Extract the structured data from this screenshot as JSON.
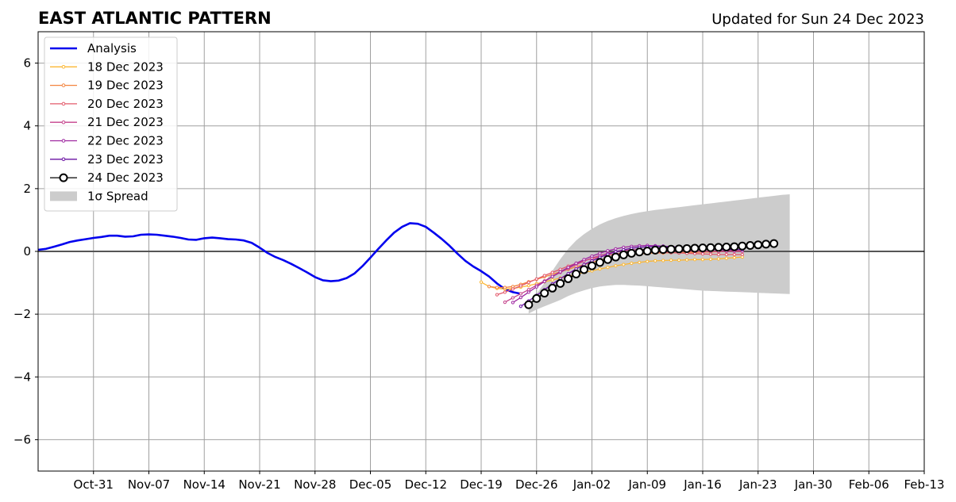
{
  "chart_data": {
    "type": "line",
    "title": "EAST ATLANTIC PATTERN",
    "subtitle": "Updated for Sun 24 Dec 2023",
    "xlabel": "",
    "ylabel": "",
    "x_range": [
      "2023-10-24",
      "2024-02-13"
    ],
    "ylim": [
      -7,
      7
    ],
    "x_ticks": [
      "Oct-31",
      "Nov-07",
      "Nov-14",
      "Nov-21",
      "Nov-28",
      "Dec-05",
      "Dec-12",
      "Dec-19",
      "Dec-26",
      "Jan-02",
      "Jan-09",
      "Jan-16",
      "Jan-23",
      "Jan-30",
      "Feb-06",
      "Feb-13"
    ],
    "x_tick_dates": [
      "2023-10-31",
      "2023-11-07",
      "2023-11-14",
      "2023-11-21",
      "2023-11-28",
      "2023-12-05",
      "2023-12-12",
      "2023-12-19",
      "2023-12-26",
      "2024-01-02",
      "2024-01-09",
      "2024-01-16",
      "2024-01-23",
      "2024-01-30",
      "2024-02-06",
      "2024-02-13"
    ],
    "y_ticks": [
      -6,
      -4,
      -2,
      0,
      2,
      4,
      6
    ],
    "y_tick_labels": [
      "−6",
      "−4",
      "−2",
      "0",
      "2",
      "4",
      "6"
    ],
    "grid": true,
    "legend_position": "top-left",
    "legend": [
      "Analysis",
      "18 Dec 2023",
      "19 Dec 2023",
      "20 Dec 2023",
      "21 Dec 2023",
      "22 Dec 2023",
      "23 Dec 2023",
      "24 Dec 2023",
      "1σ Spread"
    ],
    "analysis": {
      "name": "Analysis",
      "color": "#0000ee",
      "points": [
        [
          "2023-10-24",
          0.05
        ],
        [
          "2023-10-25",
          0.08
        ],
        [
          "2023-10-26",
          0.15
        ],
        [
          "2023-10-27",
          0.22
        ],
        [
          "2023-10-28",
          0.3
        ],
        [
          "2023-10-29",
          0.35
        ],
        [
          "2023-10-30",
          0.39
        ],
        [
          "2023-10-31",
          0.43
        ],
        [
          "2023-11-01",
          0.46
        ],
        [
          "2023-11-02",
          0.5
        ],
        [
          "2023-11-03",
          0.5
        ],
        [
          "2023-11-04",
          0.47
        ],
        [
          "2023-11-05",
          0.48
        ],
        [
          "2023-11-06",
          0.53
        ],
        [
          "2023-11-07",
          0.54
        ],
        [
          "2023-11-08",
          0.53
        ],
        [
          "2023-11-09",
          0.5
        ],
        [
          "2023-11-10",
          0.47
        ],
        [
          "2023-11-11",
          0.43
        ],
        [
          "2023-11-12",
          0.38
        ],
        [
          "2023-11-13",
          0.37
        ],
        [
          "2023-11-14",
          0.42
        ],
        [
          "2023-11-15",
          0.44
        ],
        [
          "2023-11-16",
          0.42
        ],
        [
          "2023-11-17",
          0.39
        ],
        [
          "2023-11-18",
          0.38
        ],
        [
          "2023-11-19",
          0.35
        ],
        [
          "2023-11-20",
          0.27
        ],
        [
          "2023-11-21",
          0.12
        ],
        [
          "2023-11-22",
          -0.05
        ],
        [
          "2023-11-23",
          -0.18
        ],
        [
          "2023-11-24",
          -0.28
        ],
        [
          "2023-11-25",
          -0.4
        ],
        [
          "2023-11-26",
          -0.53
        ],
        [
          "2023-11-27",
          -0.67
        ],
        [
          "2023-11-28",
          -0.82
        ],
        [
          "2023-11-29",
          -0.92
        ],
        [
          "2023-11-30",
          -0.95
        ],
        [
          "2023-12-01",
          -0.93
        ],
        [
          "2023-12-02",
          -0.85
        ],
        [
          "2023-12-03",
          -0.7
        ],
        [
          "2023-12-04",
          -0.47
        ],
        [
          "2023-12-05",
          -0.2
        ],
        [
          "2023-12-06",
          0.08
        ],
        [
          "2023-12-07",
          0.35
        ],
        [
          "2023-12-08",
          0.6
        ],
        [
          "2023-12-09",
          0.78
        ],
        [
          "2023-12-10",
          0.9
        ],
        [
          "2023-12-11",
          0.88
        ],
        [
          "2023-12-12",
          0.78
        ],
        [
          "2023-12-13",
          0.6
        ],
        [
          "2023-12-14",
          0.4
        ],
        [
          "2023-12-15",
          0.18
        ],
        [
          "2023-12-16",
          -0.07
        ],
        [
          "2023-12-17",
          -0.3
        ],
        [
          "2023-12-18",
          -0.48
        ],
        [
          "2023-12-19",
          -0.63
        ],
        [
          "2023-12-20",
          -0.8
        ],
        [
          "2023-12-21",
          -1.02
        ],
        [
          "2023-12-22",
          -1.2
        ],
        [
          "2023-12-23",
          -1.3
        ],
        [
          "2023-12-24",
          -1.35
        ]
      ]
    },
    "forecasts": [
      {
        "name": "18 Dec 2023",
        "color": "#fbb733",
        "start": "2023-12-19",
        "values": [
          -0.98,
          -1.12,
          -1.18,
          -1.2,
          -1.18,
          -1.14,
          -1.09,
          -1.03,
          -0.97,
          -0.91,
          -0.85,
          -0.79,
          -0.73,
          -0.67,
          -0.62,
          -0.56,
          -0.51,
          -0.46,
          -0.42,
          -0.38,
          -0.35,
          -0.32,
          -0.3,
          -0.29,
          -0.28,
          -0.28,
          -0.27,
          -0.26,
          -0.26,
          -0.25,
          -0.24,
          -0.22,
          -0.2,
          -0.18
        ]
      },
      {
        "name": "19 Dec 2023",
        "color": "#f3843e",
        "start": "2023-12-20",
        "values": [
          -1.12,
          -1.15,
          -1.15,
          -1.12,
          -1.05,
          -0.97,
          -0.89,
          -0.81,
          -0.73,
          -0.65,
          -0.57,
          -0.49,
          -0.42,
          -0.35,
          -0.28,
          -0.22,
          -0.17,
          -0.13,
          -0.1,
          -0.08,
          -0.06,
          -0.05,
          -0.05,
          -0.04,
          -0.04,
          -0.03,
          -0.03,
          -0.02,
          -0.02,
          -0.01,
          0.0,
          0.01,
          0.02
        ]
      },
      {
        "name": "20 Dec 2023",
        "color": "#e35a6b",
        "start": "2023-12-21",
        "values": [
          -1.38,
          -1.3,
          -1.2,
          -1.1,
          -0.99,
          -0.88,
          -0.77,
          -0.67,
          -0.57,
          -0.47,
          -0.38,
          -0.3,
          -0.23,
          -0.17,
          -0.12,
          -0.08,
          -0.05,
          -0.03,
          -0.02,
          -0.02,
          -0.02,
          -0.03,
          -0.04,
          -0.05,
          -0.06,
          -0.07,
          -0.08,
          -0.09,
          -0.1,
          -0.1,
          -0.1,
          -0.1
        ]
      },
      {
        "name": "21 Dec 2023",
        "color": "#c4418b",
        "start": "2023-12-22",
        "values": [
          -1.62,
          -1.48,
          -1.35,
          -1.22,
          -1.08,
          -0.94,
          -0.8,
          -0.67,
          -0.54,
          -0.42,
          -0.31,
          -0.21,
          -0.13,
          -0.06,
          -0.01,
          0.03,
          0.05,
          0.06,
          0.06,
          0.05,
          0.04,
          0.03,
          0.02,
          0.01,
          0.0,
          0.0,
          0.0,
          0.0,
          0.0,
          0.0,
          0.0
        ]
      },
      {
        "name": "22 Dec 2023",
        "color": "#9e27a0",
        "start": "2023-12-23",
        "values": [
          -1.63,
          -1.47,
          -1.3,
          -1.13,
          -0.96,
          -0.8,
          -0.65,
          -0.51,
          -0.38,
          -0.26,
          -0.15,
          -0.06,
          0.02,
          0.08,
          0.13,
          0.16,
          0.18,
          0.19,
          0.18,
          0.17,
          0.15,
          0.13,
          0.11,
          0.09,
          0.07,
          0.06,
          0.05,
          0.04,
          0.04,
          0.05
        ]
      },
      {
        "name": "23 Dec 2023",
        "color": "#6a10a3",
        "start": "2023-12-24",
        "values": [
          -1.75,
          -1.58,
          -1.4,
          -1.22,
          -1.04,
          -0.87,
          -0.71,
          -0.56,
          -0.42,
          -0.3,
          -0.19,
          -0.09,
          -0.01,
          0.05,
          0.1,
          0.13,
          0.15,
          0.16,
          0.16,
          0.15,
          0.14,
          0.13,
          0.11,
          0.1,
          0.09,
          0.08,
          0.07,
          0.06,
          0.05
        ]
      },
      {
        "name": "24 Dec 2023",
        "color": "#000000",
        "start": "2023-12-25",
        "values": [
          -1.7,
          -1.5,
          -1.33,
          -1.17,
          -1.02,
          -0.87,
          -0.72,
          -0.58,
          -0.46,
          -0.35,
          -0.26,
          -0.18,
          -0.11,
          -0.06,
          -0.02,
          0.01,
          0.04,
          0.06,
          0.07,
          0.08,
          0.09,
          0.1,
          0.11,
          0.12,
          0.13,
          0.14,
          0.15,
          0.17,
          0.19,
          0.21,
          0.23,
          0.25
        ]
      }
    ],
    "spread": {
      "name": "1σ Spread",
      "color": "#cccccc",
      "start": "2023-12-25",
      "upper": [
        -1.7,
        -1.35,
        -1.0,
        -0.62,
        -0.25,
        0.08,
        0.35,
        0.55,
        0.72,
        0.86,
        0.97,
        1.06,
        1.13,
        1.19,
        1.24,
        1.28,
        1.32,
        1.35,
        1.38,
        1.41,
        1.44,
        1.47,
        1.5,
        1.53,
        1.56,
        1.59,
        1.62,
        1.65,
        1.68,
        1.71,
        1.74,
        1.77,
        1.8,
        1.82
      ],
      "lower": [
        -1.98,
        -1.85,
        -1.75,
        -1.65,
        -1.55,
        -1.42,
        -1.32,
        -1.24,
        -1.17,
        -1.12,
        -1.09,
        -1.07,
        -1.07,
        -1.08,
        -1.09,
        -1.11,
        -1.13,
        -1.15,
        -1.17,
        -1.19,
        -1.21,
        -1.23,
        -1.25,
        -1.26,
        -1.27,
        -1.28,
        -1.29,
        -1.3,
        -1.31,
        -1.32,
        -1.33,
        -1.34,
        -1.35,
        -1.36
      ]
    }
  }
}
